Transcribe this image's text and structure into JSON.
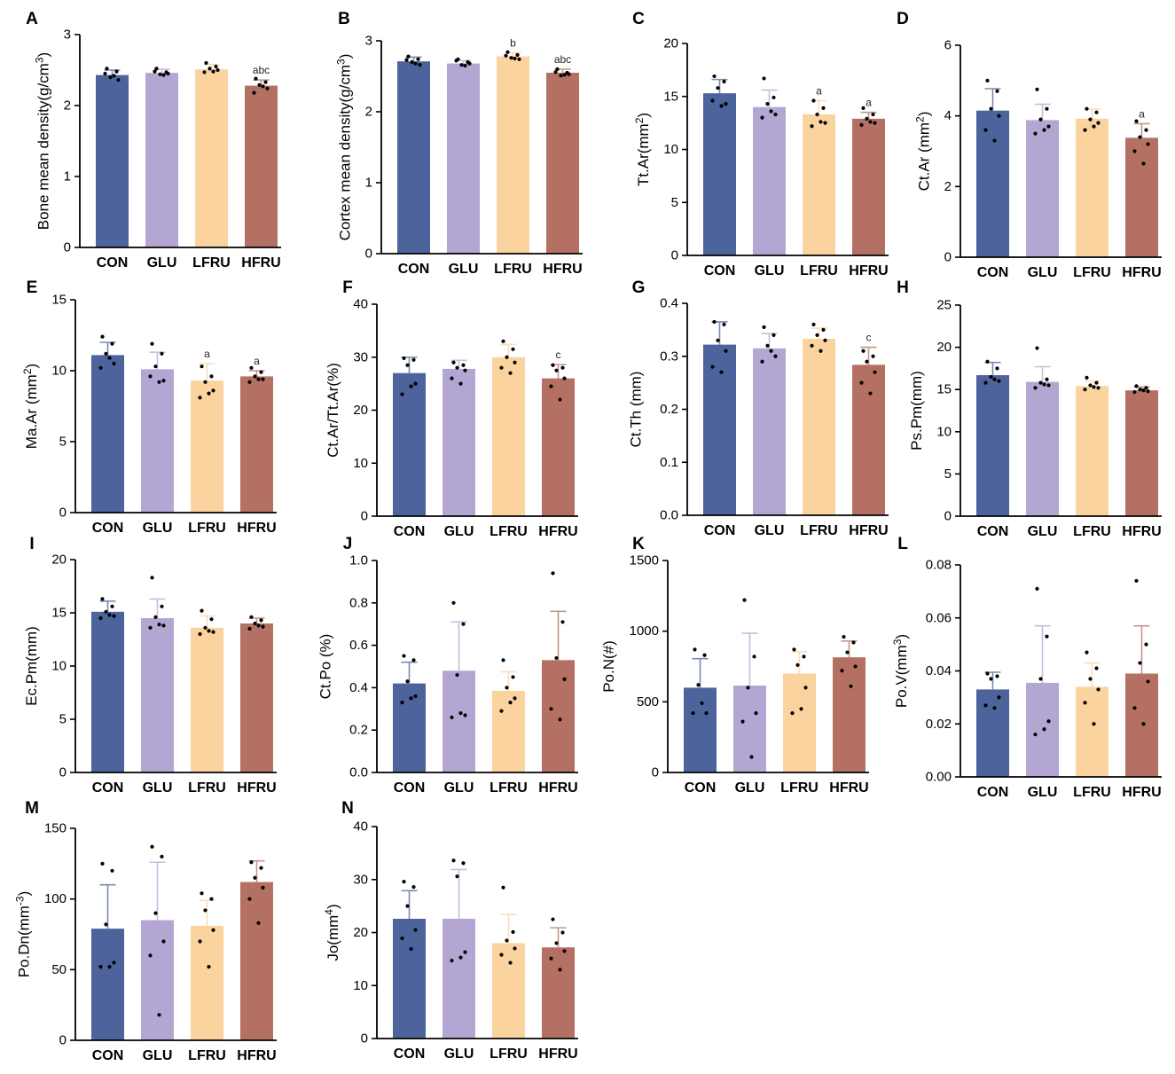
{
  "groups": [
    "CON",
    "GLU",
    "LFRU",
    "HFRU"
  ],
  "colors": {
    "CON": "#4c639b",
    "GLU": "#b4a6d2",
    "LFRU": "#fbd39f",
    "HFRU": "#b47063",
    "axis": "#000000",
    "dot": "#000000"
  },
  "chart_data": [
    {
      "type": "bar",
      "panel": "A",
      "ylabel": "Bone mean density(g/cm3)",
      "ylabel_base": "Bone mean density(g/cm",
      "ylabel_sup": "3",
      "ylabel_tail": ")",
      "ylim": [
        0,
        3
      ],
      "yticks": [
        "0",
        "1",
        "2",
        "3"
      ],
      "categories": [
        "CON",
        "GLU",
        "LFRU",
        "HFRU"
      ],
      "values": [
        2.43,
        2.46,
        2.51,
        2.28
      ],
      "sd": [
        0.07,
        0.05,
        0.07,
        0.08
      ],
      "annotations": [
        "",
        "",
        "",
        "abc"
      ],
      "points": [
        [
          2.52,
          2.48,
          2.4,
          2.36,
          2.45,
          2.42
        ],
        [
          2.52,
          2.47,
          2.44,
          2.45,
          2.48,
          2.43
        ],
        [
          2.6,
          2.55,
          2.52,
          2.5,
          2.47,
          2.48
        ],
        [
          2.38,
          2.33,
          2.29,
          2.24,
          2.18,
          2.27
        ]
      ]
    },
    {
      "type": "bar",
      "panel": "B",
      "ylabel": "Cortex mean density(g/cm3)",
      "ylabel_base": "Cortex mean density(g/cm",
      "ylabel_sup": "3",
      "ylabel_tail": ")",
      "ylim": [
        0,
        3
      ],
      "yticks": [
        "0",
        "1",
        "2",
        "3"
      ],
      "categories": [
        "CON",
        "GLU",
        "LFRU",
        "HFRU"
      ],
      "values": [
        2.71,
        2.68,
        2.78,
        2.55
      ],
      "sd": [
        0.06,
        0.04,
        0.05,
        0.05
      ],
      "annotations": [
        "",
        "",
        "b",
        "abc"
      ],
      "points": [
        [
          2.78,
          2.74,
          2.7,
          2.66,
          2.73,
          2.68
        ],
        [
          2.74,
          2.7,
          2.66,
          2.68,
          2.72,
          2.65
        ],
        [
          2.84,
          2.8,
          2.76,
          2.74,
          2.79,
          2.75
        ],
        [
          2.6,
          2.55,
          2.51,
          2.53,
          2.56,
          2.52
        ]
      ]
    },
    {
      "type": "bar",
      "panel": "C",
      "ylabel": "Tt.Ar(mm2)",
      "ylabel_base": "Tt.Ar(mm",
      "ylabel_sup": "2",
      "ylabel_tail": ")",
      "ylim": [
        0,
        20
      ],
      "yticks": [
        "0",
        "5",
        "10",
        "15",
        "20"
      ],
      "categories": [
        "CON",
        "GLU",
        "LFRU",
        "HFRU"
      ],
      "values": [
        15.3,
        14.0,
        13.3,
        12.9
      ],
      "sd": [
        1.3,
        1.6,
        1.3,
        0.6
      ],
      "annotations": [
        "",
        "",
        "a",
        "a"
      ],
      "points": [
        [
          16.9,
          16.4,
          15.8,
          14.3,
          14.6,
          14.1
        ],
        [
          16.7,
          14.9,
          14.3,
          13.3,
          13.0,
          13.6
        ],
        [
          14.6,
          13.9,
          13.3,
          12.5,
          12.2,
          12.6
        ],
        [
          13.9,
          13.3,
          12.9,
          12.5,
          12.3,
          12.6
        ]
      ]
    },
    {
      "type": "bar",
      "panel": "D",
      "ylabel": "Ct.Ar (mm2)",
      "ylabel_base": "Ct.Ar (mm",
      "ylabel_sup": "2",
      "ylabel_tail": ")",
      "ylim": [
        0,
        6
      ],
      "yticks": [
        "0",
        "2",
        "4",
        "6"
      ],
      "categories": [
        "CON",
        "GLU",
        "LFRU",
        "HFRU"
      ],
      "values": [
        4.15,
        3.88,
        3.92,
        3.38
      ],
      "sd": [
        0.62,
        0.45,
        0.27,
        0.4
      ],
      "annotations": [
        "",
        "",
        "",
        "a"
      ],
      "points": [
        [
          5.0,
          4.7,
          4.2,
          4.0,
          3.6,
          3.3
        ],
        [
          4.75,
          4.2,
          3.9,
          3.7,
          3.5,
          3.6
        ],
        [
          4.2,
          4.1,
          3.9,
          3.8,
          3.6,
          3.7
        ],
        [
          3.85,
          3.6,
          3.4,
          3.2,
          3.0,
          2.65
        ]
      ]
    },
    {
      "type": "bar",
      "panel": "E",
      "ylabel": "Ma.Ar (mm2)",
      "ylabel_base": "Ma.Ar (mm",
      "ylabel_sup": "2",
      "ylabel_tail": ")",
      "ylim": [
        0,
        15
      ],
      "yticks": [
        "0",
        "5",
        "10",
        "15"
      ],
      "categories": [
        "CON",
        "GLU",
        "LFRU",
        "HFRU"
      ],
      "values": [
        11.1,
        10.1,
        9.3,
        9.6
      ],
      "sd": [
        0.9,
        1.2,
        1.2,
        0.4
      ],
      "annotations": [
        "",
        "",
        "a",
        "a"
      ],
      "points": [
        [
          12.4,
          11.9,
          11.2,
          10.5,
          10.2,
          10.9
        ],
        [
          11.9,
          11.2,
          10.3,
          9.3,
          9.6,
          9.2
        ],
        [
          10.3,
          9.6,
          9.2,
          8.6,
          8.1,
          8.4
        ],
        [
          10.2,
          9.9,
          9.6,
          9.4,
          9.2,
          9.4
        ]
      ]
    },
    {
      "type": "bar",
      "panel": "F",
      "ylabel": "Ct.Ar/Tt.Ar(%)",
      "ylabel_base": "Ct.Ar/Tt.Ar(%)",
      "ylabel_sup": "",
      "ylabel_tail": "",
      "ylim": [
        0,
        40
      ],
      "yticks": [
        "0",
        "10",
        "20",
        "30",
        "40"
      ],
      "categories": [
        "CON",
        "GLU",
        "LFRU",
        "HFRU"
      ],
      "values": [
        27.0,
        27.8,
        30.0,
        26.0
      ],
      "sd": [
        3.0,
        1.6,
        2.4,
        2.6
      ],
      "annotations": [
        "",
        "",
        "",
        "c"
      ],
      "points": [
        [
          29.8,
          29.5,
          28.5,
          25.0,
          23.0,
          24.5
        ],
        [
          29.0,
          28.5,
          28.0,
          27.5,
          26.0,
          25.0
        ],
        [
          33.0,
          31.5,
          30.0,
          29.0,
          28.0,
          27.0
        ],
        [
          28.5,
          28.0,
          27.5,
          26.0,
          24.5,
          22.0
        ]
      ]
    },
    {
      "type": "bar",
      "panel": "G",
      "ylabel": "Ct.Th (mm)",
      "ylabel_base": "Ct.Th (mm)",
      "ylabel_sup": "",
      "ylabel_tail": "",
      "ylim": [
        0,
        0.4
      ],
      "yticks": [
        "0.0",
        "0.1",
        "0.2",
        "0.3",
        "0.4"
      ],
      "categories": [
        "CON",
        "GLU",
        "LFRU",
        "HFRU"
      ],
      "values": [
        0.322,
        0.315,
        0.333,
        0.284
      ],
      "sd": [
        0.043,
        0.028,
        0.02,
        0.033
      ],
      "annotations": [
        "",
        "",
        "",
        "c"
      ],
      "points": [
        [
          0.365,
          0.36,
          0.33,
          0.31,
          0.28,
          0.27
        ],
        [
          0.355,
          0.34,
          0.32,
          0.3,
          0.29,
          0.31
        ],
        [
          0.36,
          0.35,
          0.34,
          0.33,
          0.32,
          0.31
        ],
        [
          0.31,
          0.3,
          0.29,
          0.27,
          0.25,
          0.23
        ]
      ]
    },
    {
      "type": "bar",
      "panel": "H",
      "ylabel": "Ps.Pm(mm)",
      "ylabel_base": "Ps.Pm(mm)",
      "ylabel_sup": "",
      "ylabel_tail": "",
      "ylim": [
        0,
        25
      ],
      "yticks": [
        "0",
        "5",
        "10",
        "15",
        "20",
        "25"
      ],
      "categories": [
        "CON",
        "GLU",
        "LFRU",
        "HFRU"
      ],
      "values": [
        16.7,
        15.9,
        15.4,
        14.9
      ],
      "sd": [
        1.5,
        1.8,
        0.6,
        0.4
      ],
      "annotations": [
        "",
        "",
        "",
        ""
      ],
      "points": [
        [
          18.3,
          17.5,
          16.5,
          16.0,
          15.8,
          16.2
        ],
        [
          19.9,
          16.2,
          15.8,
          15.5,
          15.2,
          15.6
        ],
        [
          16.4,
          15.8,
          15.5,
          15.2,
          15.0,
          15.3
        ],
        [
          15.4,
          15.2,
          15.0,
          14.8,
          14.7,
          14.9
        ]
      ]
    },
    {
      "type": "bar",
      "panel": "I",
      "ylabel": "Ec.Pm(mm)",
      "ylabel_base": "Ec.Pm(mm)",
      "ylabel_sup": "",
      "ylabel_tail": "",
      "ylim": [
        0,
        20
      ],
      "yticks": [
        "0",
        "5",
        "10",
        "15",
        "20"
      ],
      "categories": [
        "CON",
        "GLU",
        "LFRU",
        "HFRU"
      ],
      "values": [
        15.1,
        14.5,
        13.6,
        14.0
      ],
      "sd": [
        1.0,
        1.8,
        1.1,
        0.5
      ],
      "annotations": [
        "",
        "",
        "",
        ""
      ],
      "points": [
        [
          16.3,
          15.6,
          15.1,
          14.7,
          14.5,
          14.8
        ],
        [
          18.3,
          15.6,
          14.6,
          13.8,
          13.6,
          13.9
        ],
        [
          15.2,
          14.4,
          13.6,
          13.2,
          13.0,
          13.3
        ],
        [
          14.6,
          14.3,
          14.0,
          13.7,
          13.5,
          13.8
        ]
      ]
    },
    {
      "type": "bar",
      "panel": "J",
      "ylabel": "Ct.Po (%)",
      "ylabel_base": "Ct.Po (%)",
      "ylabel_sup": "",
      "ylabel_tail": "",
      "ylim": [
        0,
        1.0
      ],
      "yticks": [
        "0.0",
        "0.2",
        "0.4",
        "0.6",
        "0.8",
        "1.0"
      ],
      "categories": [
        "CON",
        "GLU",
        "LFRU",
        "HFRU"
      ],
      "values": [
        0.42,
        0.48,
        0.385,
        0.53
      ],
      "sd": [
        0.1,
        0.23,
        0.09,
        0.23
      ],
      "annotations": [
        "",
        "",
        "",
        ""
      ],
      "points": [
        [
          0.55,
          0.53,
          0.43,
          0.36,
          0.33,
          0.35
        ],
        [
          0.8,
          0.7,
          0.46,
          0.27,
          0.26,
          0.28
        ],
        [
          0.53,
          0.45,
          0.4,
          0.35,
          0.29,
          0.33
        ],
        [
          0.94,
          0.71,
          0.54,
          0.44,
          0.3,
          0.25
        ]
      ]
    },
    {
      "type": "bar",
      "panel": "K",
      "ylabel": "Po.N(#)",
      "ylabel_base": "Po.N(#)",
      "ylabel_sup": "",
      "ylabel_tail": "",
      "ylim": [
        0,
        1500
      ],
      "yticks": [
        "0",
        "500",
        "1000",
        "1500"
      ],
      "categories": [
        "CON",
        "GLU",
        "LFRU",
        "HFRU"
      ],
      "values": [
        600,
        615,
        700,
        815
      ],
      "sd": [
        205,
        370,
        155,
        115
      ],
      "annotations": [
        "",
        "",
        "",
        ""
      ],
      "points": [
        [
          870,
          830,
          620,
          420,
          420,
          490
        ],
        [
          1220,
          820,
          600,
          420,
          360,
          110
        ],
        [
          870,
          820,
          760,
          600,
          420,
          450
        ],
        [
          960,
          920,
          850,
          750,
          720,
          610
        ]
      ]
    },
    {
      "type": "bar",
      "panel": "L",
      "ylabel": "Po.V(mm3)",
      "ylabel_base": "Po.V(mm",
      "ylabel_sup": "3",
      "ylabel_tail": ")",
      "ylim": [
        0,
        0.08
      ],
      "yticks": [
        "0.00",
        "0.02",
        "0.04",
        "0.06",
        "0.08"
      ],
      "categories": [
        "CON",
        "GLU",
        "LFRU",
        "HFRU"
      ],
      "values": [
        0.033,
        0.0355,
        0.034,
        0.039
      ],
      "sd": [
        0.0065,
        0.0215,
        0.009,
        0.018
      ],
      "annotations": [
        "",
        "",
        "",
        ""
      ],
      "points": [
        [
          0.039,
          0.038,
          0.037,
          0.03,
          0.027,
          0.026
        ],
        [
          0.071,
          0.053,
          0.037,
          0.021,
          0.016,
          0.018
        ],
        [
          0.047,
          0.041,
          0.037,
          0.033,
          0.028,
          0.02
        ],
        [
          0.074,
          0.05,
          0.043,
          0.036,
          0.026,
          0.02
        ]
      ]
    },
    {
      "type": "bar",
      "panel": "M",
      "ylabel": "Po.Dn(mm-3)",
      "ylabel_base": "Po.Dn(mm",
      "ylabel_sup": "-3",
      "ylabel_tail": ")",
      "ylim": [
        0,
        150
      ],
      "yticks": [
        "0",
        "50",
        "100",
        "150"
      ],
      "categories": [
        "CON",
        "GLU",
        "LFRU",
        "HFRU"
      ],
      "values": [
        79,
        85,
        81,
        112
      ],
      "sd": [
        31,
        41,
        18,
        15
      ],
      "annotations": [
        "",
        "",
        "",
        ""
      ],
      "points": [
        [
          125,
          120,
          82,
          55,
          52,
          52
        ],
        [
          137,
          130,
          90,
          70,
          60,
          18
        ],
        [
          104,
          100,
          92,
          78,
          70,
          52
        ],
        [
          126,
          122,
          115,
          108,
          100,
          83
        ]
      ]
    },
    {
      "type": "bar",
      "panel": "N",
      "ylabel": "Jo(mm4)",
      "ylabel_base": "Jo(mm",
      "ylabel_sup": "4",
      "ylabel_tail": ")",
      "ylim": [
        0,
        40
      ],
      "yticks": [
        "0",
        "10",
        "20",
        "30",
        "40"
      ],
      "categories": [
        "CON",
        "GLU",
        "LFRU",
        "HFRU"
      ],
      "values": [
        22.6,
        22.6,
        18.0,
        17.2
      ],
      "sd": [
        5.3,
        9.3,
        5.4,
        3.7
      ],
      "annotations": [
        "",
        "",
        "",
        ""
      ],
      "points": [
        [
          29.6,
          28.6,
          25.0,
          20.5,
          18.9,
          16.9
        ],
        [
          33.6,
          33.1,
          30.6,
          16.3,
          14.7,
          15.3
        ],
        [
          28.5,
          20.1,
          18.5,
          17.0,
          15.8,
          14.3
        ],
        [
          22.5,
          20.0,
          18.0,
          16.5,
          15.1,
          13.0
        ]
      ]
    }
  ]
}
